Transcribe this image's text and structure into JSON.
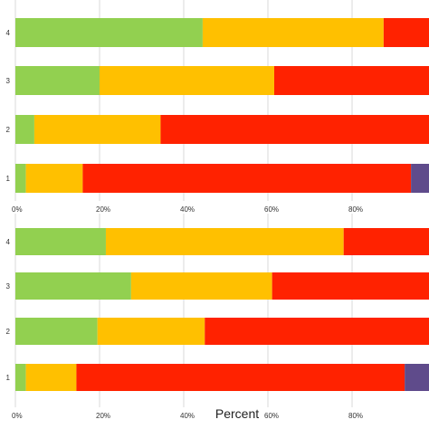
{
  "chart_data": [
    {
      "type": "bar",
      "orientation": "horizontal",
      "stacked": true,
      "categories": [
        "4",
        "3",
        "2",
        "1"
      ],
      "series": [
        {
          "color": "#92D050",
          "values": [
            44.5,
            20,
            4.5,
            2.5
          ]
        },
        {
          "color": "#FFC000",
          "values": [
            43,
            41.5,
            30,
            13.5
          ]
        },
        {
          "color": "#FF2200",
          "values": [
            12.5,
            38.5,
            65.5,
            78
          ]
        },
        {
          "color": "#5F4B8B",
          "values": [
            0,
            0,
            0,
            6
          ]
        }
      ],
      "xticks": [
        "0%",
        "20%",
        "40%",
        "60%",
        "80%"
      ],
      "xlim": [
        0,
        100
      ],
      "xlabel": "",
      "grid": true
    },
    {
      "type": "bar",
      "orientation": "horizontal",
      "stacked": true,
      "categories": [
        "4",
        "3",
        "2",
        "1"
      ],
      "series": [
        {
          "color": "#92D050",
          "values": [
            21.5,
            27.5,
            19.5,
            2.5
          ]
        },
        {
          "color": "#FFC000",
          "values": [
            56.5,
            33.5,
            25.5,
            12
          ]
        },
        {
          "color": "#FF2200",
          "values": [
            22,
            39,
            55,
            78
          ]
        },
        {
          "color": "#5F4B8B",
          "values": [
            0,
            0,
            0,
            7.5
          ]
        }
      ],
      "xticks": [
        "0%",
        "20%",
        "40%",
        "60%",
        "80%"
      ],
      "xlim": [
        0,
        100
      ],
      "xlabel": "Percent",
      "grid": true
    }
  ]
}
